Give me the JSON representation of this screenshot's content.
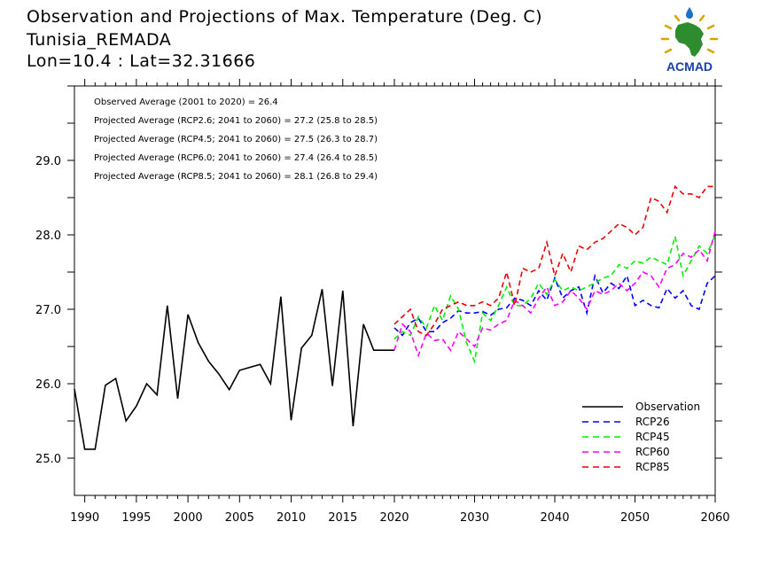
{
  "header": {
    "title": "Observation and Projections of Max. Temperature (Deg. C)",
    "station": "Tunisia_REMADA",
    "coords": "Lon=10.4 : Lat=32.31666"
  },
  "logo": {
    "text": "ACMAD",
    "icon": "africa-map-logo",
    "colors": {
      "africa": "#2e8b2e",
      "text": "#1a3fa8",
      "rays": "#d9a400",
      "drop": "#1a6fd0"
    }
  },
  "annotations": [
    "Observed Average (2001 to 2020) = 26.4",
    "Projected Average (RCP2.6; 2041 to 2060) = 27.2 (25.8 to 28.5)",
    "Projected Average (RCP4.5; 2041 to 2060) = 27.5 (26.3 to 28.7)",
    "Projected Average (RCP6.0; 2041 to 2060) = 27.4 (26.4 to 28.5)",
    "Projected Average (RCP8.5; 2041 to 2060) = 28.1 (26.8 to 29.4)"
  ],
  "chart_data": {
    "type": "line",
    "title": "Observation and Projections of Max. Temperature (Deg. C)",
    "xlim": [
      1989,
      2060
    ],
    "ylim": [
      24.5,
      30.0
    ],
    "x_ticks": [
      "1990",
      "1995",
      "2000",
      "2005",
      "2010",
      "2015",
      "2020",
      "2030",
      "2040",
      "2050",
      "2060"
    ],
    "y_ticks": [
      "25.0",
      "26.0",
      "27.0",
      "28.0",
      "29.0"
    ],
    "grid": false,
    "legend_position": "bottom-right",
    "series": [
      {
        "name": "Observation",
        "color": "#000000",
        "style": "solid",
        "x": [
          1989,
          1990,
          1991,
          1992,
          1993,
          1994,
          1995,
          1996,
          1997,
          1998,
          1999,
          2000,
          2001,
          2002,
          2003,
          2004,
          2005,
          2006,
          2007,
          2008,
          2009,
          2010,
          2011,
          2012,
          2013,
          2014,
          2015,
          2016,
          2017,
          2018,
          2019,
          2020
        ],
        "y": [
          25.93,
          25.12,
          25.12,
          25.98,
          26.07,
          25.5,
          25.7,
          26.0,
          25.85,
          27.05,
          25.8,
          26.93,
          26.55,
          26.3,
          26.13,
          25.92,
          26.18,
          26.22,
          26.26,
          26.0,
          27.17,
          25.51,
          26.48,
          26.65,
          27.27,
          25.97,
          27.25,
          25.43,
          26.8,
          26.45,
          26.45,
          26.45
        ]
      },
      {
        "name": "RCP26",
        "color": "#0000ff",
        "style": "dashed",
        "x": [
          2020,
          2021,
          2022,
          2023,
          2024,
          2025,
          2026,
          2027,
          2028,
          2029,
          2030,
          2031,
          2032,
          2033,
          2034,
          2035,
          2036,
          2037,
          2038,
          2039,
          2040,
          2041,
          2042,
          2043,
          2044,
          2045,
          2046,
          2047,
          2048,
          2049,
          2050,
          2051,
          2052,
          2053,
          2054,
          2055,
          2056,
          2057,
          2058,
          2059,
          2060
        ],
        "y": [
          26.75,
          26.65,
          26.82,
          26.88,
          26.7,
          26.7,
          26.82,
          26.88,
          26.98,
          26.95,
          26.95,
          26.97,
          26.92,
          27.0,
          27.02,
          27.15,
          27.12,
          27.05,
          27.25,
          27.12,
          27.42,
          27.15,
          27.25,
          27.3,
          26.95,
          27.45,
          27.22,
          27.35,
          27.28,
          27.45,
          27.05,
          27.12,
          27.05,
          27.02,
          27.28,
          27.15,
          27.25,
          27.05,
          27.0,
          27.35,
          27.45
        ]
      },
      {
        "name": "RCP45",
        "color": "#00ee00",
        "style": "dashed",
        "x": [
          2020,
          2021,
          2022,
          2023,
          2024,
          2025,
          2026,
          2027,
          2028,
          2029,
          2030,
          2031,
          2032,
          2033,
          2034,
          2035,
          2036,
          2037,
          2038,
          2039,
          2040,
          2041,
          2042,
          2043,
          2044,
          2045,
          2046,
          2047,
          2048,
          2049,
          2050,
          2051,
          2052,
          2053,
          2054,
          2055,
          2056,
          2057,
          2058,
          2059,
          2060
        ],
        "y": [
          26.6,
          26.7,
          26.65,
          26.9,
          26.75,
          27.05,
          26.85,
          27.18,
          27.0,
          26.55,
          26.3,
          26.95,
          26.85,
          27.05,
          27.3,
          27.05,
          27.05,
          27.15,
          27.35,
          27.2,
          27.4,
          27.25,
          27.3,
          27.25,
          27.3,
          27.35,
          27.42,
          27.45,
          27.6,
          27.55,
          27.65,
          27.62,
          27.7,
          27.65,
          27.6,
          27.98,
          27.45,
          27.65,
          27.85,
          27.75,
          28.0
        ]
      },
      {
        "name": "RCP60",
        "color": "#ff00ff",
        "style": "dashed",
        "x": [
          2020,
          2021,
          2022,
          2023,
          2024,
          2025,
          2026,
          2027,
          2028,
          2029,
          2030,
          2031,
          2032,
          2033,
          2034,
          2035,
          2036,
          2037,
          2038,
          2039,
          2040,
          2041,
          2042,
          2043,
          2044,
          2045,
          2046,
          2047,
          2048,
          2049,
          2050,
          2051,
          2052,
          2053,
          2054,
          2055,
          2056,
          2057,
          2058,
          2059,
          2060
        ],
        "y": [
          26.45,
          26.8,
          26.7,
          26.38,
          26.68,
          26.58,
          26.6,
          26.45,
          26.7,
          26.6,
          26.5,
          26.75,
          26.72,
          26.8,
          26.85,
          27.12,
          27.05,
          26.95,
          27.15,
          27.3,
          27.05,
          27.1,
          27.25,
          27.15,
          27.0,
          27.25,
          27.2,
          27.25,
          27.35,
          27.25,
          27.35,
          27.5,
          27.45,
          27.3,
          27.55,
          27.6,
          27.75,
          27.7,
          27.8,
          27.65,
          28.05
        ]
      },
      {
        "name": "RCP85",
        "color": "#ee0000",
        "style": "dashed",
        "x": [
          2020,
          2021,
          2022,
          2023,
          2024,
          2025,
          2026,
          2027,
          2028,
          2029,
          2030,
          2031,
          2032,
          2033,
          2034,
          2035,
          2036,
          2037,
          2038,
          2039,
          2040,
          2041,
          2042,
          2043,
          2044,
          2045,
          2046,
          2047,
          2048,
          2049,
          2050,
          2051,
          2052,
          2053,
          2054,
          2055,
          2056,
          2057,
          2058,
          2059,
          2060
        ],
        "y": [
          26.8,
          26.9,
          27.0,
          26.7,
          26.65,
          26.8,
          27.0,
          27.05,
          27.1,
          27.05,
          27.05,
          27.1,
          27.05,
          27.15,
          27.5,
          27.05,
          27.55,
          27.5,
          27.55,
          27.9,
          27.45,
          27.75,
          27.5,
          27.85,
          27.8,
          27.9,
          27.95,
          28.05,
          28.15,
          28.1,
          28.0,
          28.1,
          28.5,
          28.45,
          28.3,
          28.65,
          28.55,
          28.55,
          28.5,
          28.65,
          28.65
        ]
      }
    ]
  }
}
